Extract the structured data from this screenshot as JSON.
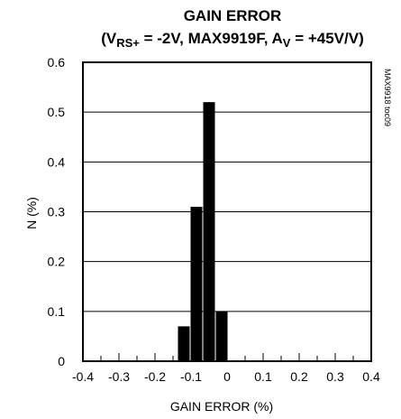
{
  "chart_data": {
    "type": "bar",
    "title": "GAIN ERROR",
    "subtitle_parts": {
      "open": "(V",
      "sub1": "RS+",
      "mid": " = -2V, MAX9919F, A",
      "sub2": "V",
      "close": " = +45V/V)"
    },
    "xlabel": "GAIN ERROR (%)",
    "ylabel": "N (%)",
    "side_note": "MAX9918 toc09",
    "xlim": [
      -0.4,
      0.4
    ],
    "ylim": [
      0,
      0.6
    ],
    "xticks": [
      -0.4,
      -0.3,
      -0.2,
      -0.1,
      0,
      0.1,
      0.2,
      0.3,
      0.4
    ],
    "xtick_labels": [
      "-0.4",
      "-0.3",
      "-0.2",
      "-0.1",
      "0",
      "0.1",
      "0.2",
      "0.3",
      "0.4"
    ],
    "yticks": [
      0,
      0.1,
      0.2,
      0.3,
      0.4,
      0.5,
      0.6
    ],
    "ytick_labels": [
      "0",
      "0.1",
      "0.2",
      "0.3",
      "0.4",
      "0.5",
      "0.6"
    ],
    "bin_width": 0.035,
    "bins": [
      {
        "x": -0.12,
        "value": 0.07
      },
      {
        "x": -0.085,
        "value": 0.31
      },
      {
        "x": -0.05,
        "value": 0.52
      },
      {
        "x": -0.015,
        "value": 0.1
      }
    ],
    "grid": "horizontal",
    "colors": {
      "bar": "#000000",
      "grid": "#000000",
      "axis": "#000000"
    }
  }
}
